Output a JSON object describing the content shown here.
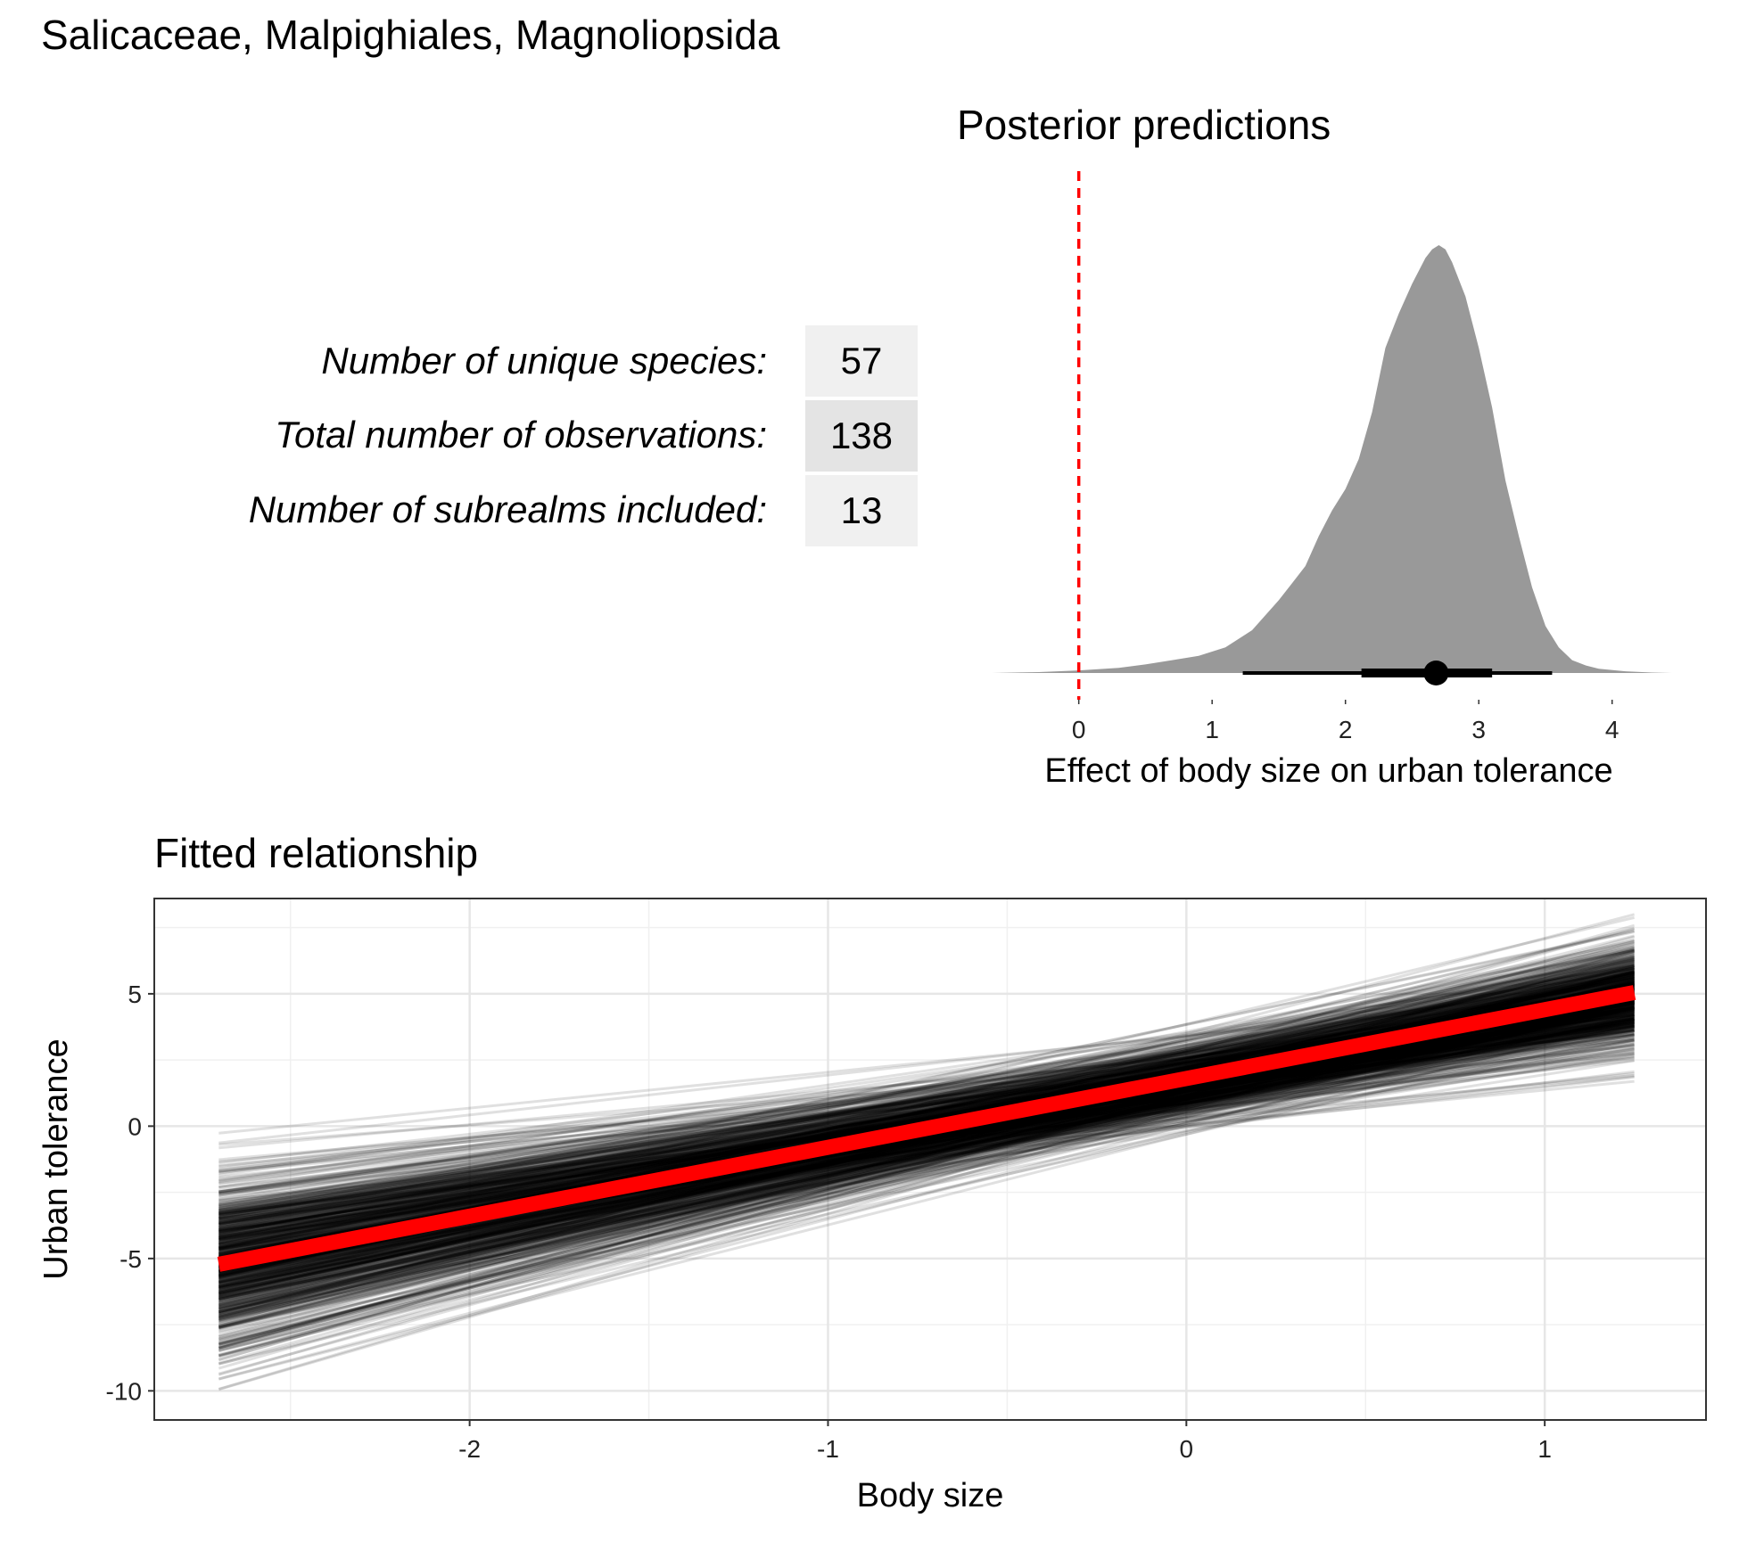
{
  "figure": {
    "title": "Salicaceae, Malpighiales, Magnoliopsida"
  },
  "stats_table": {
    "rows": [
      {
        "label": "Number of unique species:",
        "value": "57",
        "shade": "#f0f0f0"
      },
      {
        "label": "Total number of observations:",
        "value": "138",
        "shade": "#e4e4e4"
      },
      {
        "label": "Number of subrealms included:",
        "value": "13",
        "shade": "#f0f0f0"
      }
    ]
  },
  "chart_data": [
    {
      "type": "area",
      "title": "Posterior predictions",
      "xlabel": "Effect of body size on urban tolerance",
      "ylabel": "",
      "xlim": [
        -0.68,
        4.45
      ],
      "xticks": [
        0,
        1,
        2,
        3,
        4
      ],
      "fill_color": "#999999",
      "reference_line": {
        "x": 0,
        "color": "#ff0000",
        "style": "dashed"
      },
      "density": {
        "x": [
          -0.65,
          -0.3,
          0,
          0.3,
          0.5,
          0.7,
          0.9,
          1.1,
          1.3,
          1.5,
          1.6,
          1.7,
          1.8,
          1.9,
          2.0,
          2.1,
          2.2,
          2.3,
          2.4,
          2.5,
          2.6,
          2.65,
          2.7,
          2.75,
          2.8,
          2.9,
          3.0,
          3.1,
          3.2,
          3.3,
          3.4,
          3.5,
          3.6,
          3.7,
          3.8,
          3.9,
          4.1,
          4.3,
          4.45
        ],
        "y": [
          0.0,
          0.002,
          0.006,
          0.012,
          0.02,
          0.03,
          0.04,
          0.06,
          0.1,
          0.17,
          0.21,
          0.25,
          0.32,
          0.38,
          0.43,
          0.5,
          0.61,
          0.76,
          0.84,
          0.91,
          0.97,
          0.99,
          1.0,
          0.99,
          0.96,
          0.88,
          0.76,
          0.62,
          0.45,
          0.32,
          0.2,
          0.11,
          0.06,
          0.03,
          0.018,
          0.01,
          0.004,
          0.001,
          0.0
        ]
      },
      "point_interval": {
        "median": 2.68,
        "inner": [
          2.12,
          3.1
        ],
        "outer": [
          1.23,
          3.55
        ]
      }
    },
    {
      "type": "line",
      "title": "Fitted relationship",
      "xlabel": "Body size",
      "ylabel": "Urban tolerance",
      "xlim": [
        -2.88,
        1.45
      ],
      "ylim": [
        -11.1,
        8.6
      ],
      "xticks": [
        -2,
        -1,
        0,
        1
      ],
      "yticks": [
        -10,
        -5,
        0,
        5
      ],
      "grid": true,
      "x_range": [
        -2.7,
        1.25
      ],
      "posterior_draws": {
        "count": 800,
        "intercept_mean": 1.65,
        "intercept_sd": 0.75,
        "slope_mean": 2.55,
        "slope_sd": 0.52,
        "color": "#000000",
        "alpha": 0.12
      },
      "mean_fit": {
        "intercept": 1.8,
        "slope": 2.6,
        "color": "#ff0000"
      }
    }
  ]
}
